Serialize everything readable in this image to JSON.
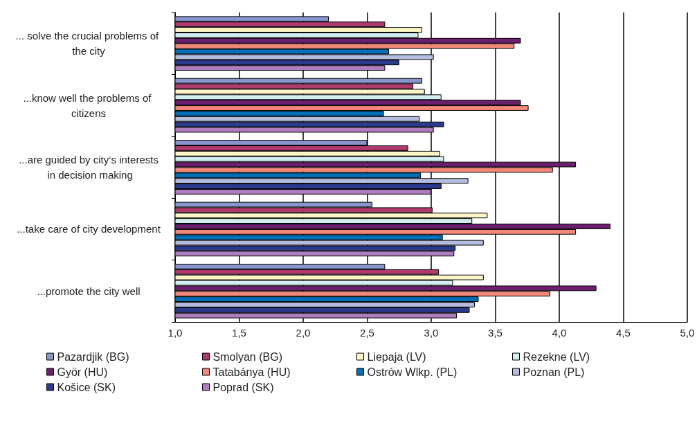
{
  "chart_data": {
    "type": "bar",
    "orientation": "horizontal",
    "categories": [
      "... solve the crucial problems of the city",
      "...know well the problems of citizens",
      "...are guided by city‘s interests in decision making",
      "...take care of city development",
      "...promote the city well"
    ],
    "xlim": [
      1,
      5
    ],
    "xticks": [
      {
        "value": 1,
        "label": "1,0"
      },
      {
        "value": 1.5,
        "label": "1,5"
      },
      {
        "value": 2,
        "label": "2,0"
      },
      {
        "value": 2.5,
        "label": "2,5"
      },
      {
        "value": 3,
        "label": "3,0"
      },
      {
        "value": 3.5,
        "label": "3,5"
      },
      {
        "value": 4,
        "label": "4,0"
      },
      {
        "value": 4.5,
        "label": "4,5"
      },
      {
        "value": 5,
        "label": "5,0"
      }
    ],
    "grid": "x",
    "legend": "bottom",
    "series": [
      {
        "name": "Pazardjik (BG)",
        "color": "#8896cc",
        "values": [
          2.2,
          2.93,
          2.5,
          2.54,
          2.64
        ]
      },
      {
        "name": "Smolyan (BG)",
        "color": "#b03a6e",
        "values": [
          2.64,
          2.86,
          2.82,
          3.01,
          3.06
        ]
      },
      {
        "name": "Liepaja (LV)",
        "color": "#fdf5c8",
        "values": [
          2.93,
          2.95,
          3.07,
          3.44,
          3.41
        ]
      },
      {
        "name": "Rezekne (LV)",
        "color": "#d2eef0",
        "values": [
          2.9,
          3.08,
          3.1,
          3.32,
          3.17
        ]
      },
      {
        "name": "Györ (HU)",
        "color": "#6b1f6e",
        "values": [
          3.7,
          3.7,
          4.13,
          4.4,
          4.29
        ]
      },
      {
        "name": "Tatabánya (HU)",
        "color": "#f4877a",
        "values": [
          3.65,
          3.76,
          3.95,
          4.13,
          3.93
        ]
      },
      {
        "name": "Ostrów Wlkp. (PL)",
        "color": "#0070b8",
        "values": [
          2.67,
          2.63,
          2.92,
          3.09,
          3.37
        ]
      },
      {
        "name": "Poznan (PL)",
        "color": "#b4bce0",
        "values": [
          3.02,
          2.91,
          3.29,
          3.41,
          3.34
        ]
      },
      {
        "name": "Košice (SK)",
        "color": "#2b3a8c",
        "values": [
          2.75,
          3.1,
          3.08,
          3.19,
          3.3
        ]
      },
      {
        "name": "Poprad (SK)",
        "color": "#b07cc0",
        "values": [
          2.64,
          3.02,
          3.0,
          3.18,
          3.2
        ]
      }
    ]
  }
}
